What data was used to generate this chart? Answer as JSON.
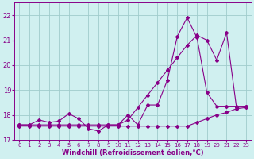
{
  "xlabel": "Windchill (Refroidissement éolien,°C)",
  "bg_color": "#d0f0f0",
  "line_color": "#880088",
  "grid_color": "#a0cccc",
  "xlim": [
    -0.5,
    23.5
  ],
  "ylim": [
    17.0,
    22.5
  ],
  "xticks": [
    0,
    1,
    2,
    3,
    4,
    5,
    6,
    7,
    8,
    9,
    10,
    11,
    12,
    13,
    14,
    15,
    16,
    17,
    18,
    19,
    20,
    21,
    22,
    23
  ],
  "yticks": [
    17,
    18,
    19,
    20,
    21,
    22
  ],
  "line1_x": [
    0,
    1,
    2,
    3,
    4,
    5,
    6,
    7,
    8,
    9,
    10,
    11,
    12,
    13,
    14,
    15,
    16,
    17,
    18,
    19,
    20,
    21,
    22,
    23
  ],
  "line1_y": [
    17.55,
    17.55,
    17.55,
    17.55,
    17.55,
    17.55,
    17.55,
    17.55,
    17.55,
    17.55,
    17.55,
    17.55,
    17.55,
    17.55,
    17.55,
    17.55,
    17.55,
    17.55,
    17.7,
    17.85,
    18.0,
    18.1,
    18.25,
    18.3
  ],
  "line2_x": [
    0,
    1,
    2,
    3,
    4,
    5,
    6,
    7,
    8,
    9,
    10,
    11,
    12,
    13,
    14,
    15,
    16,
    17,
    18,
    19,
    20,
    21,
    22,
    23
  ],
  "line2_y": [
    17.6,
    17.6,
    17.6,
    17.6,
    17.6,
    17.6,
    17.6,
    17.6,
    17.6,
    17.6,
    17.6,
    17.8,
    18.3,
    18.8,
    19.3,
    19.8,
    20.3,
    20.8,
    21.2,
    21.0,
    20.2,
    21.3,
    18.3,
    18.35
  ],
  "line3_x": [
    0,
    1,
    2,
    3,
    4,
    5,
    6,
    7,
    8,
    9,
    10,
    11,
    12,
    13,
    14,
    15,
    16,
    17,
    18,
    19,
    20,
    21,
    22,
    23
  ],
  "line3_y": [
    17.6,
    17.6,
    17.8,
    17.7,
    17.75,
    18.05,
    17.85,
    17.45,
    17.35,
    17.6,
    17.6,
    18.0,
    17.6,
    18.4,
    18.4,
    19.4,
    21.15,
    21.9,
    21.1,
    18.9,
    18.35,
    18.35,
    18.35,
    18.35
  ]
}
